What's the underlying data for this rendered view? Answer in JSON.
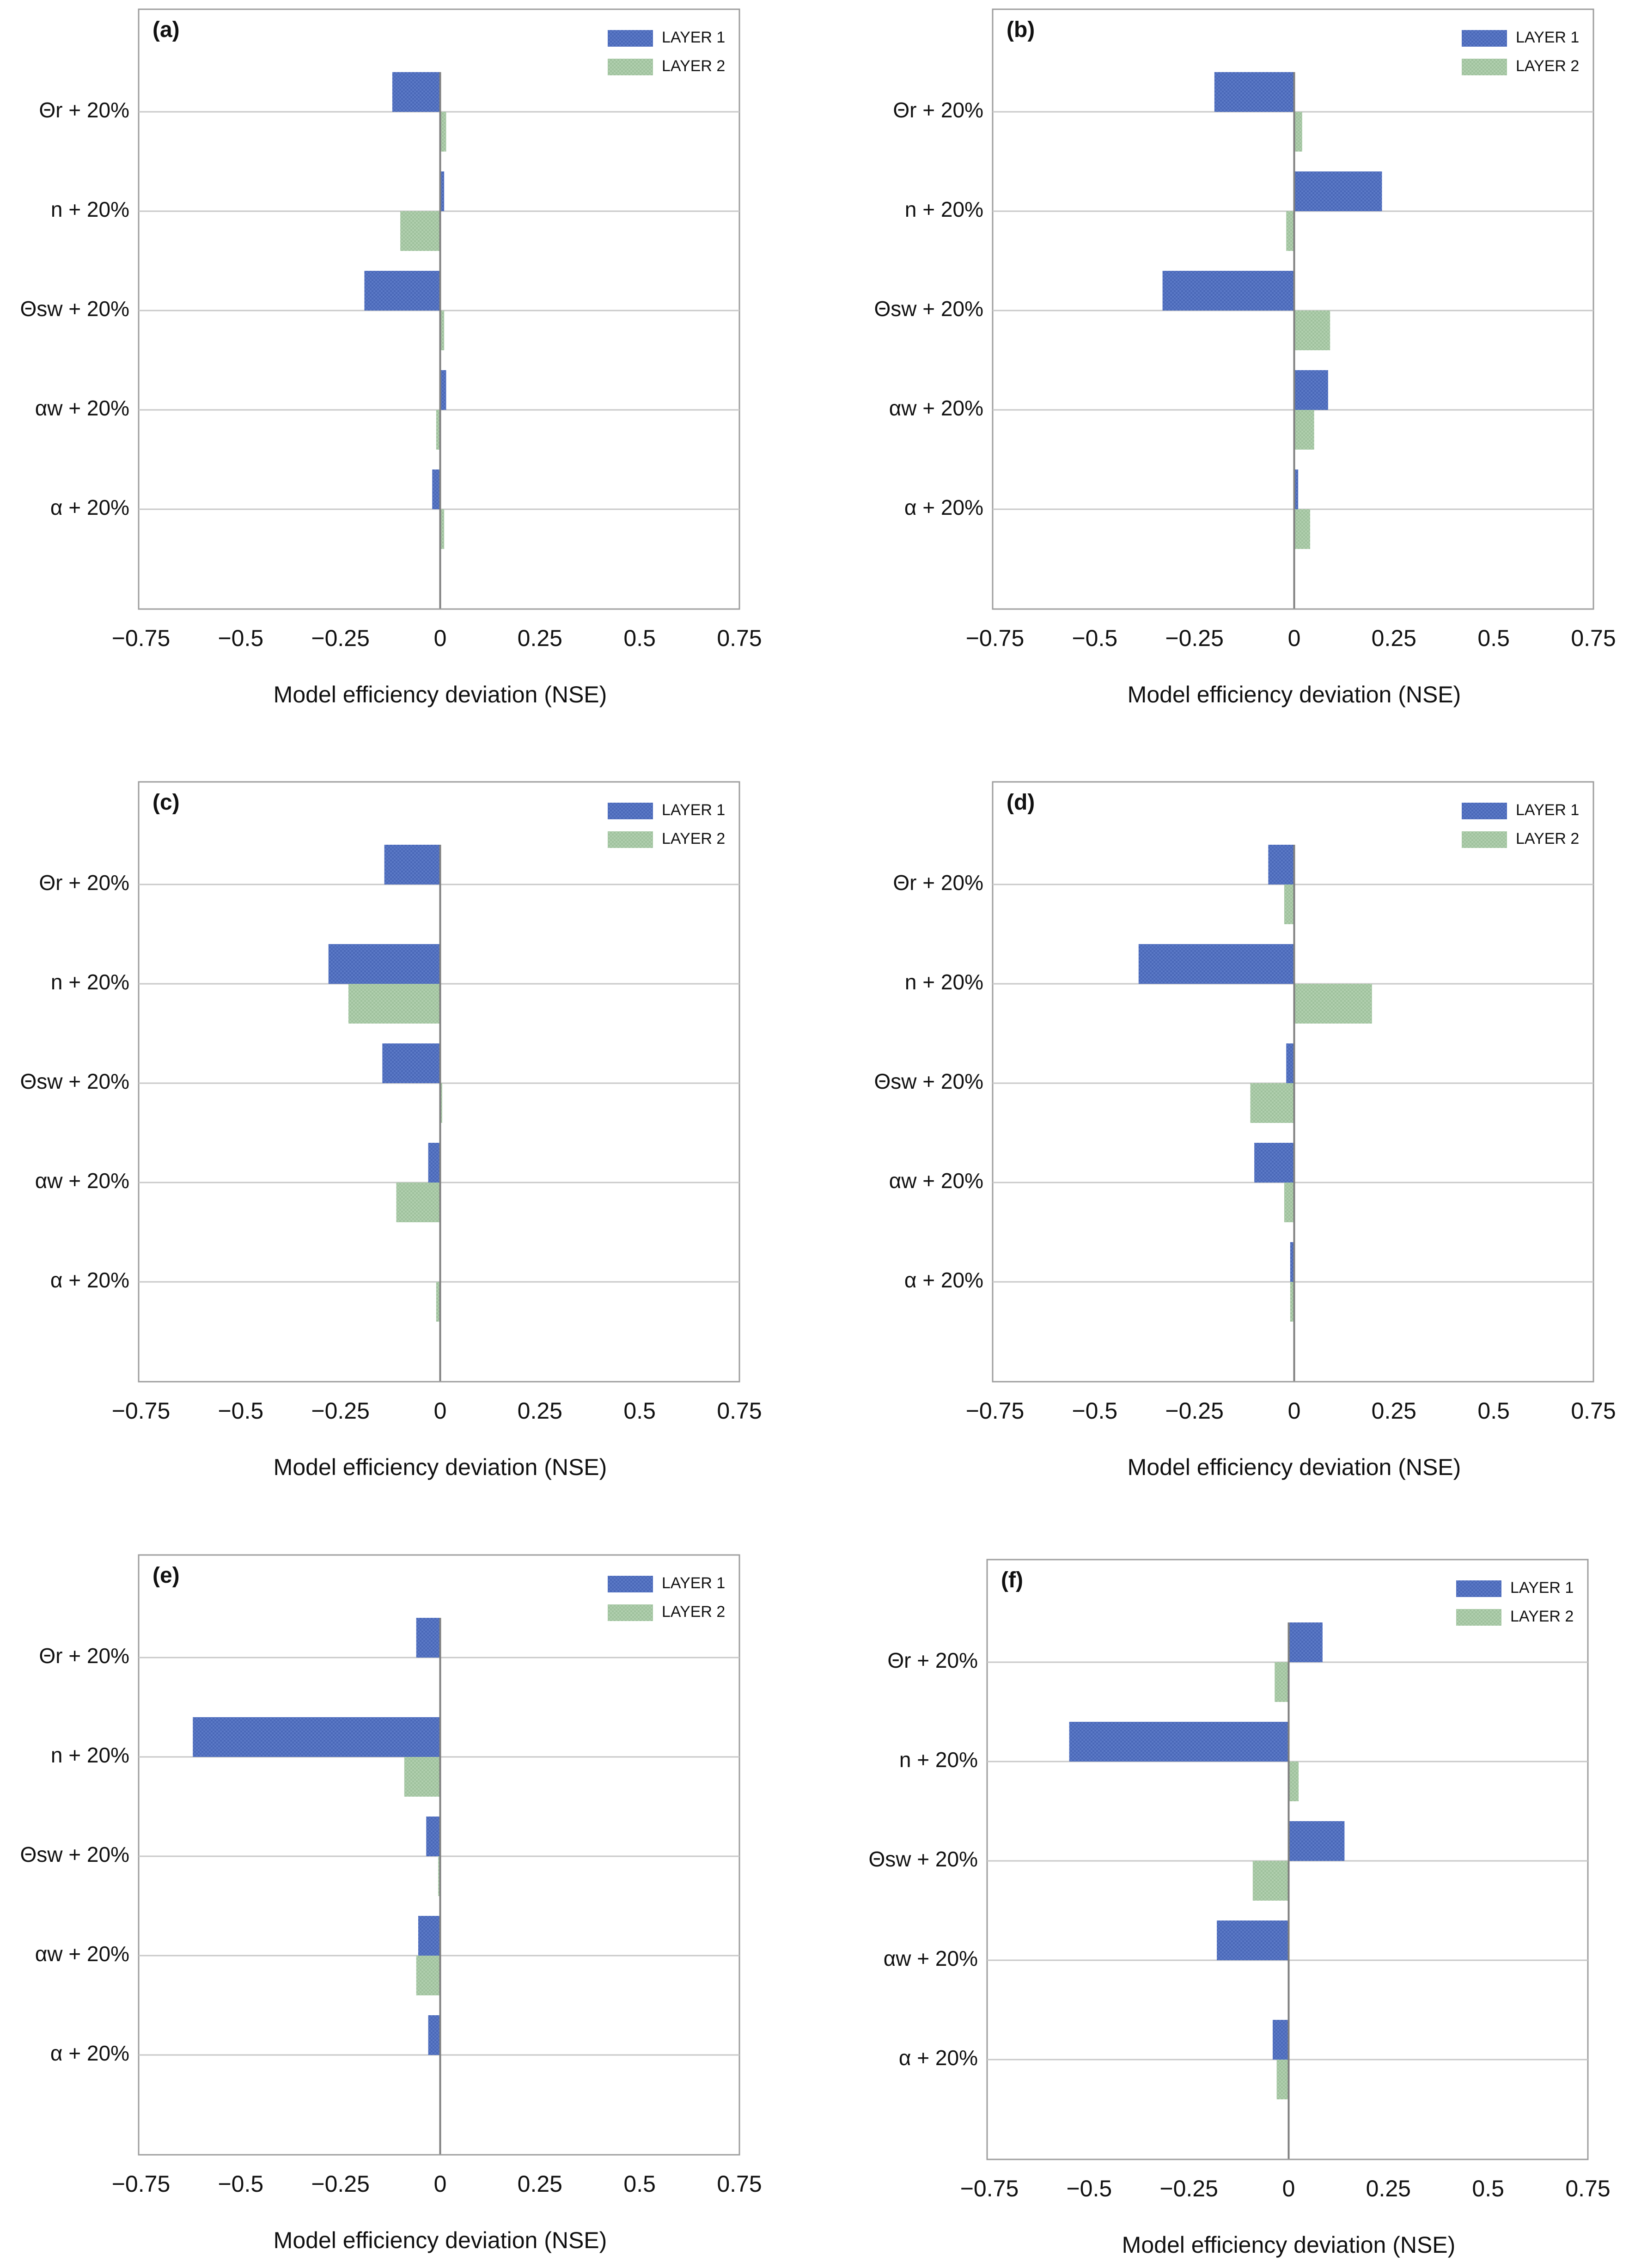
{
  "figure": {
    "legend_labels": [
      "LAYER 1",
      "LAYER 2"
    ],
    "colors": {
      "layer1": "#4f6fbf",
      "layer2": "#a6c7a4",
      "grid": "#c8c8c8",
      "axis": "#9e9e9e",
      "zero_line": "#7f7f7f"
    }
  },
  "chart_data": [
    {
      "type": "bar",
      "orientation": "horizontal",
      "panel_label": "(a)",
      "xlabel": "Model efficiency deviation (NSE)",
      "xlim": [
        -0.75,
        0.75
      ],
      "xticks": [
        "−0.75",
        "−0.5",
        "−0.25",
        "0",
        "0.25",
        "0.5",
        "0.75"
      ],
      "categories": [
        "Θr + 20%",
        "n + 20%",
        "Θsw + 20%",
        "αw + 20%",
        "α + 20%"
      ],
      "series": [
        {
          "name": "LAYER 1",
          "values": [
            -0.12,
            0.01,
            -0.19,
            0.015,
            -0.02
          ]
        },
        {
          "name": "LAYER 2",
          "values": [
            0.015,
            -0.1,
            0.01,
            -0.01,
            0.01
          ]
        }
      ],
      "legend": "top-right"
    },
    {
      "type": "bar",
      "orientation": "horizontal",
      "panel_label": "(b)",
      "xlabel": "Model efficiency deviation (NSE)",
      "xlim": [
        -0.75,
        0.75
      ],
      "xticks": [
        "−0.75",
        "−0.5",
        "−0.25",
        "0",
        "0.25",
        "0.5",
        "0.75"
      ],
      "categories": [
        "Θr + 20%",
        "n + 20%",
        "Θsw + 20%",
        "αw + 20%",
        "α + 20%"
      ],
      "series": [
        {
          "name": "LAYER 1",
          "values": [
            -0.2,
            0.22,
            -0.33,
            0.085,
            0.01
          ]
        },
        {
          "name": "LAYER 2",
          "values": [
            0.02,
            -0.02,
            0.09,
            0.05,
            0.04
          ]
        }
      ],
      "legend": "top-right"
    },
    {
      "type": "bar",
      "orientation": "horizontal",
      "panel_label": "(c)",
      "xlabel": "Model efficiency deviation (NSE)",
      "xlim": [
        -0.75,
        0.75
      ],
      "xticks": [
        "−0.75",
        "−0.5",
        "−0.25",
        "0",
        "0.25",
        "0.5",
        "0.75"
      ],
      "categories": [
        "Θr + 20%",
        "n + 20%",
        "Θsw + 20%",
        "αw + 20%",
        "α + 20%"
      ],
      "series": [
        {
          "name": "LAYER 1",
          "values": [
            -0.14,
            -0.28,
            -0.145,
            -0.03,
            0
          ]
        },
        {
          "name": "LAYER 2",
          "values": [
            0,
            -0.23,
            0.005,
            -0.11,
            -0.01
          ]
        }
      ],
      "legend": "top-right"
    },
    {
      "type": "bar",
      "orientation": "horizontal",
      "panel_label": "(d)",
      "xlabel": "Model efficiency deviation (NSE)",
      "xlim": [
        -0.75,
        0.75
      ],
      "xticks": [
        "−0.75",
        "−0.5",
        "−0.25",
        "0",
        "0.25",
        "0.5",
        "0.75"
      ],
      "categories": [
        "Θr + 20%",
        "n + 20%",
        "Θsw + 20%",
        "αw + 20%",
        "α + 20%"
      ],
      "series": [
        {
          "name": "LAYER 1",
          "values": [
            -0.065,
            -0.39,
            -0.02,
            -0.1,
            -0.01
          ]
        },
        {
          "name": "LAYER 2",
          "values": [
            -0.025,
            0.195,
            -0.11,
            -0.025,
            -0.01
          ]
        }
      ],
      "legend": "top-right"
    },
    {
      "type": "bar",
      "orientation": "horizontal",
      "panel_label": "(e)",
      "xlabel": "Model efficiency deviation (NSE)",
      "xlim": [
        -0.75,
        0.75
      ],
      "xticks": [
        "−0.75",
        "−0.5",
        "−0.25",
        "0",
        "0.25",
        "0.5",
        "0.75"
      ],
      "categories": [
        "Θr + 20%",
        "n + 20%",
        "Θsw + 20%",
        "αw + 20%",
        "α + 20%"
      ],
      "series": [
        {
          "name": "LAYER 1",
          "values": [
            -0.06,
            -0.62,
            -0.035,
            -0.055,
            -0.03
          ]
        },
        {
          "name": "LAYER 2",
          "values": [
            0,
            -0.09,
            -0.005,
            -0.06,
            0
          ]
        }
      ],
      "legend": "top-right"
    },
    {
      "type": "bar",
      "orientation": "horizontal",
      "panel_label": "(f)",
      "xlabel": "Model efficiency deviation (NSE)",
      "xlim": [
        -0.75,
        0.75
      ],
      "xticks": [
        "−0.75",
        "−0.5",
        "−0.25",
        "0",
        "0.25",
        "0.5",
        "0.75"
      ],
      "categories": [
        "Θr + 20%",
        "n + 20%",
        "Θsw + 20%",
        "αw + 20%",
        "α + 20%"
      ],
      "series": [
        {
          "name": "LAYER 1",
          "values": [
            0.085,
            -0.55,
            0.14,
            -0.18,
            -0.04
          ]
        },
        {
          "name": "LAYER 2",
          "values": [
            -0.035,
            0.025,
            -0.09,
            0,
            -0.03
          ]
        }
      ],
      "legend": "top-right"
    }
  ]
}
